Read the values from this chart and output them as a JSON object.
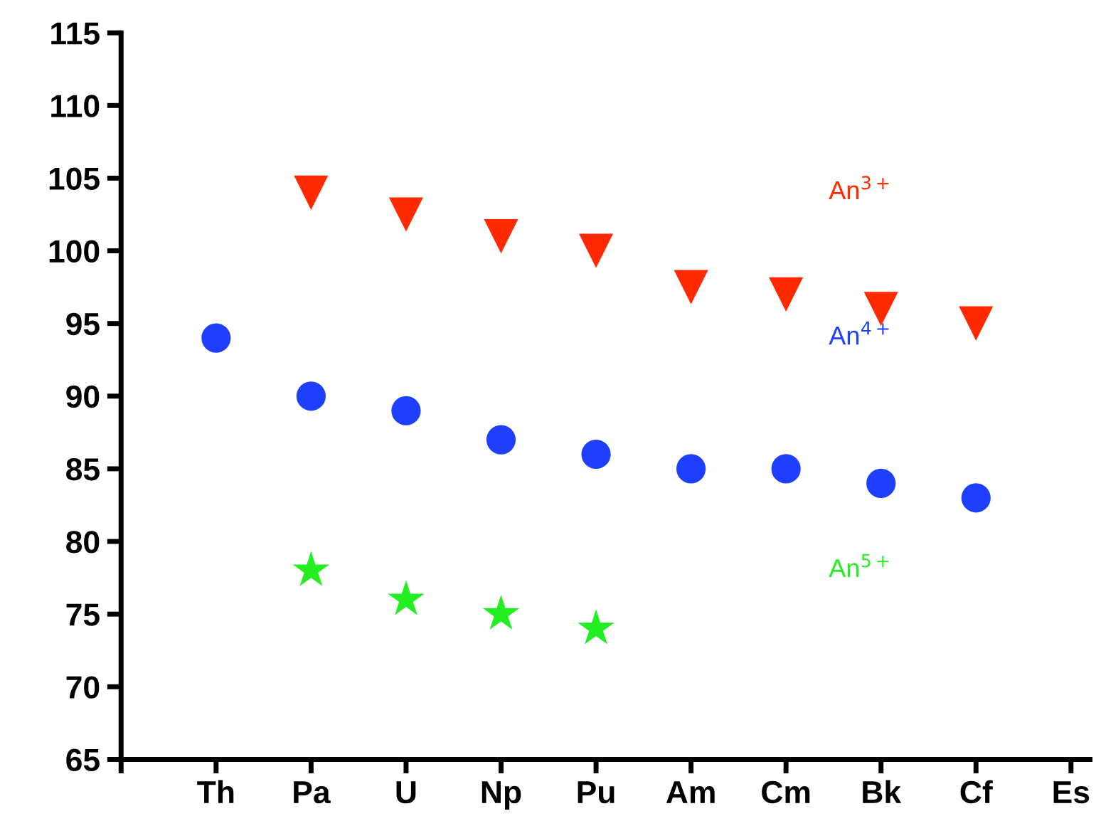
{
  "chart_data": {
    "type": "scatter",
    "categories": [
      null,
      "Th",
      "Pa",
      "U",
      "Np",
      "Pu",
      "Am",
      "Cm",
      "Bk",
      "Cf",
      "Es"
    ],
    "series": [
      {
        "name": "An$^{3+}$",
        "color": "#ff2a00",
        "marker": "triangle",
        "values": [
          null,
          null,
          104,
          102.5,
          101,
          100,
          97.5,
          97,
          96,
          95,
          null
        ]
      },
      {
        "name": "An$^{4+}$",
        "color": "#1f3fff",
        "marker": "circle",
        "values": [
          null,
          94,
          90,
          89,
          87,
          86,
          85,
          85,
          84,
          83,
          null
        ]
      },
      {
        "name": "An$^{5+}$",
        "color": "#22ee22",
        "marker": "star",
        "values": [
          null,
          null,
          78,
          76,
          75,
          74,
          null,
          null,
          null,
          null,
          null
        ]
      }
    ],
    "ylim": [
      65,
      115
    ],
    "yticks": [
      65,
      70,
      75,
      80,
      85,
      90,
      95,
      100,
      105,
      110,
      115
    ],
    "grid": false,
    "legend": false
  }
}
